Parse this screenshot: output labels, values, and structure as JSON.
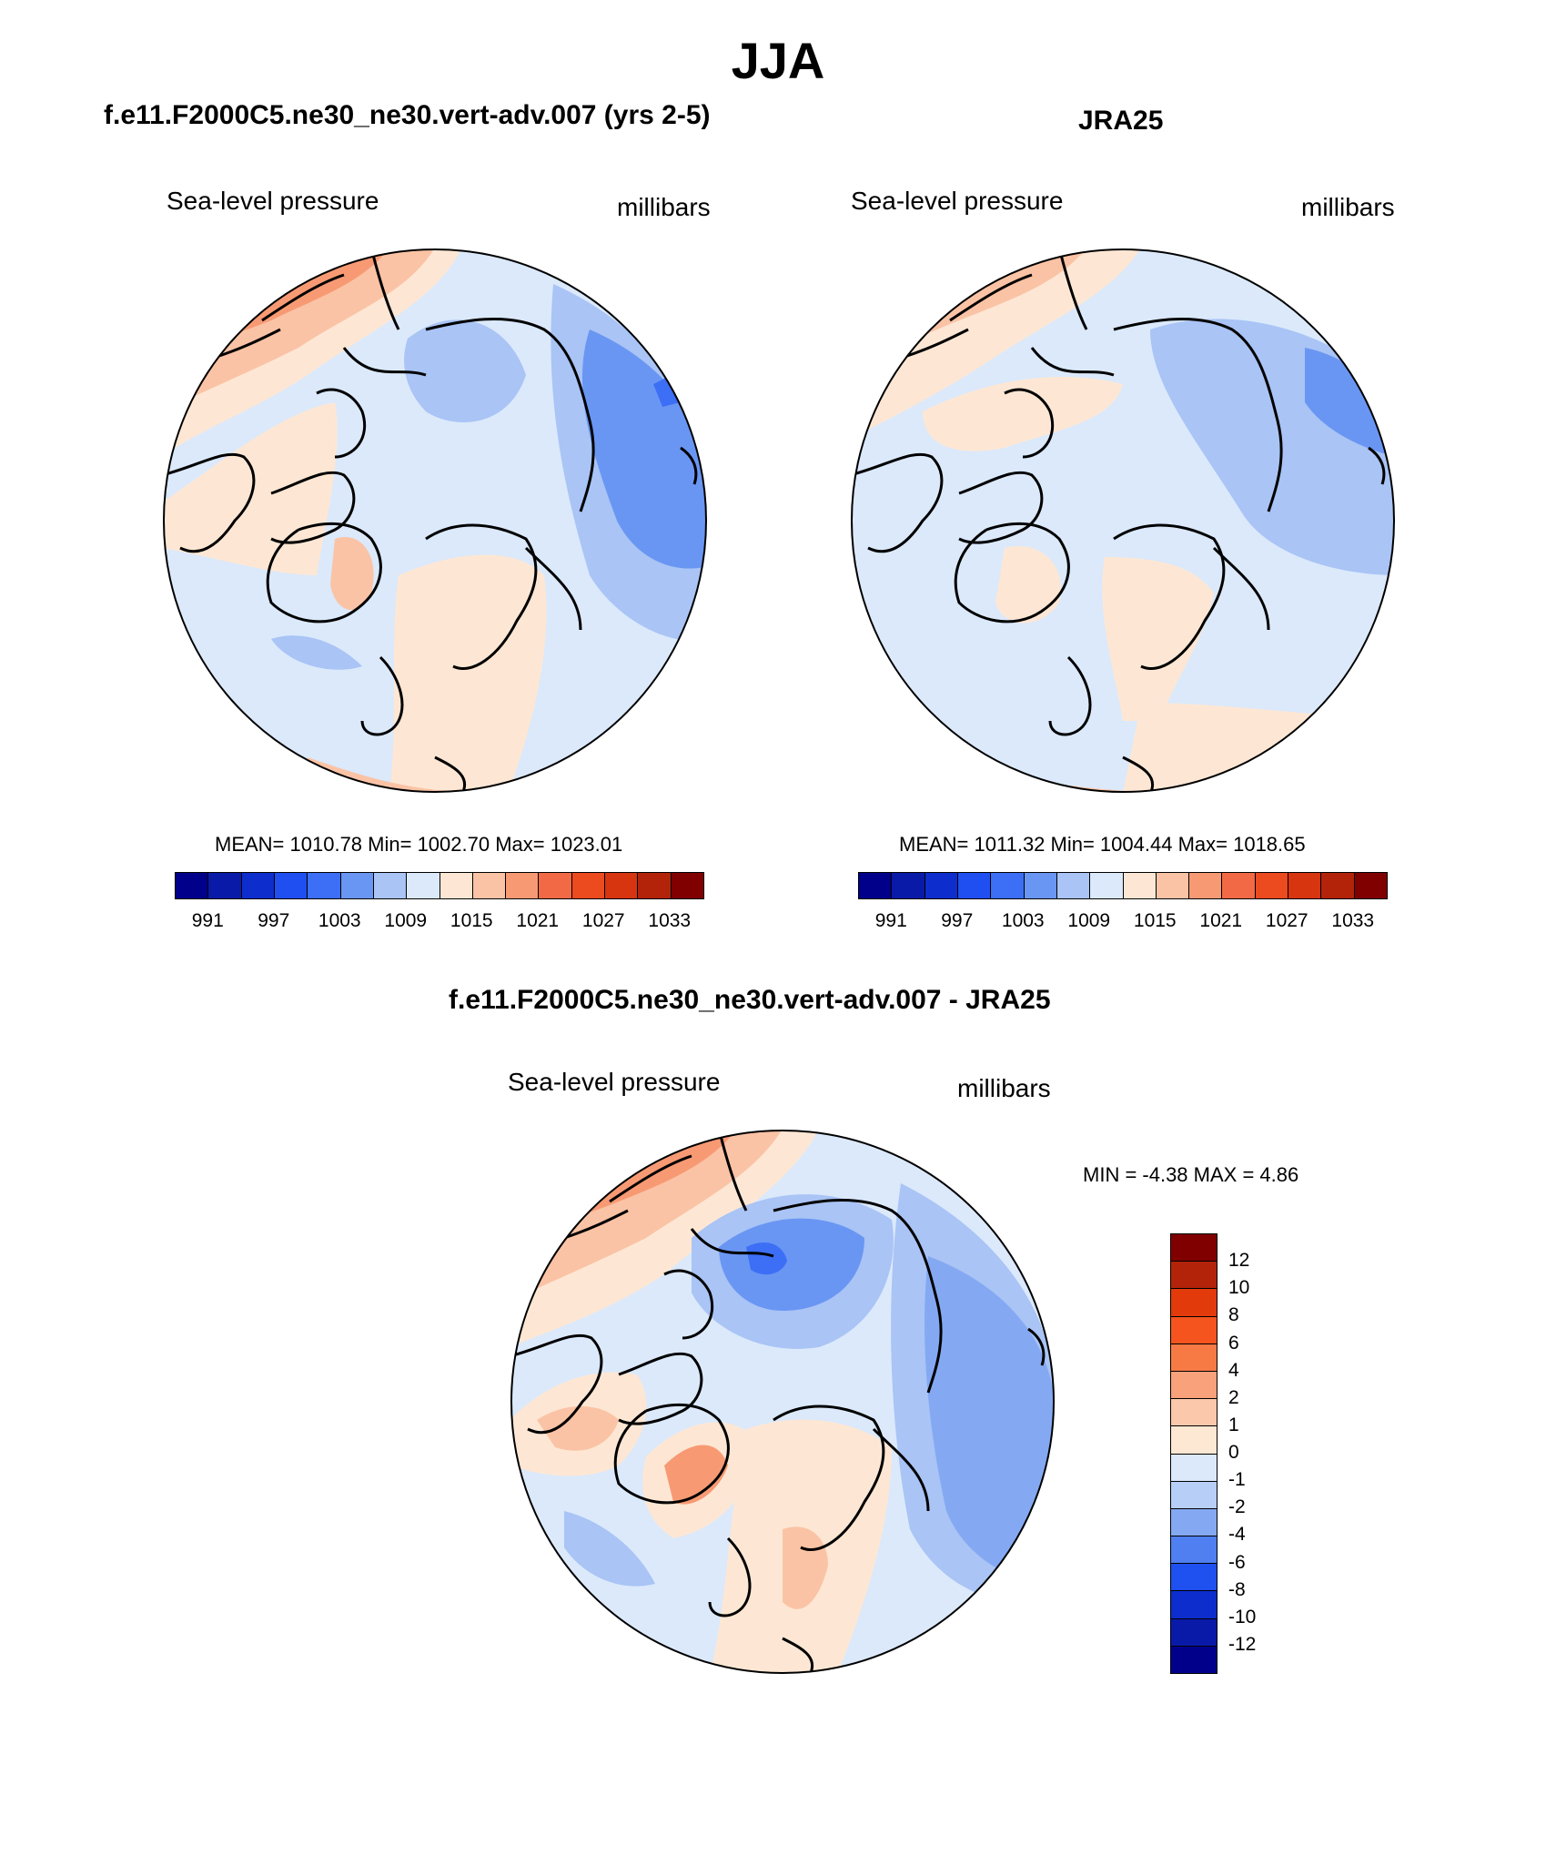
{
  "figure": {
    "title": "JJA"
  },
  "panels": [
    {
      "title": "f.e11.F2000C5.ne30_ne30.vert-adv.007 (yrs 2-5)",
      "variable": "Sea-level pressure",
      "units": "millibars",
      "stats": "MEAN= 1010.78  Min= 1002.70  Max= 1023.01"
    },
    {
      "title": "JRA25",
      "variable": "Sea-level pressure",
      "units": "millibars",
      "stats": "MEAN= 1011.32  Min= 1004.44  Max= 1018.65"
    },
    {
      "title": "f.e11.F2000C5.ne30_ne30.vert-adv.007 - JRA25",
      "variable": "Sea-level pressure",
      "units": "millibars",
      "stats": "MIN =  -4.38 MAX =   4.86"
    }
  ],
  "colorbar_abs": {
    "colors": [
      "#00008b",
      "#0a1aa8",
      "#0d2ecc",
      "#1f4ff0",
      "#3c6ff5",
      "#6a96f3",
      "#a9c4f5",
      "#dbe9fb",
      "#fde7d4",
      "#fbc3a5",
      "#f79a74",
      "#f26a45",
      "#ec4a1f",
      "#d63510",
      "#b3230a",
      "#800000"
    ],
    "ticks": [
      "991",
      "997",
      "1003",
      "1009",
      "1015",
      "1021",
      "1027",
      "1033"
    ]
  },
  "colorbar_diff": {
    "colors": [
      "#800000",
      "#b3230a",
      "#e33a0c",
      "#f5541f",
      "#f77a45",
      "#f9a17b",
      "#fcc8ac",
      "#fde8d4",
      "#dbe9fb",
      "#b7cff7",
      "#84a9f2",
      "#4f7ff0",
      "#1f50f0",
      "#0d2ecc",
      "#0a1aa8",
      "#00008b"
    ],
    "ticks": [
      "12",
      "10",
      "8",
      "6",
      "4",
      "2",
      "1",
      "0",
      "-1",
      "-2",
      "-4",
      "-6",
      "-8",
      "-10",
      "-12"
    ]
  },
  "maps": {
    "colors": {
      "neutral_blue": "#dbe9fb",
      "neutral_warm": "#fde7d4",
      "light_blue": "#a9c4f5",
      "mid_blue": "#84a9f2",
      "blue": "#6a96f3",
      "deep_blue": "#3c6ff5",
      "light_red": "#fbc3a5",
      "mid_red": "#f79a74",
      "red": "#f26a45"
    }
  }
}
